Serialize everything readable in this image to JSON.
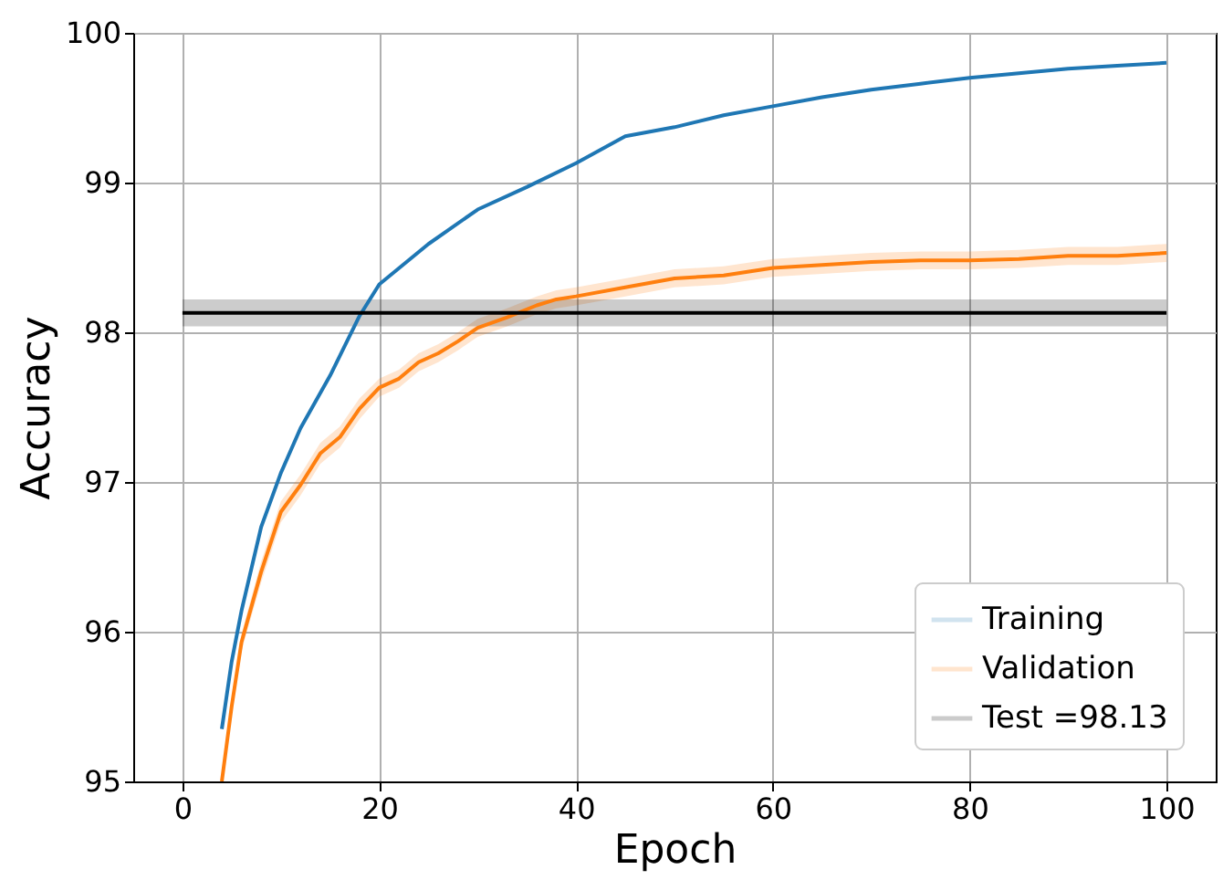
{
  "chart_data": {
    "type": "line",
    "xlabel": "Epoch",
    "ylabel": "Accuracy",
    "xlim": [
      -5,
      105
    ],
    "ylim": [
      95,
      100
    ],
    "xticks": [
      0,
      20,
      40,
      60,
      80,
      100
    ],
    "yticks": [
      95,
      96,
      97,
      98,
      99,
      100
    ],
    "grid": true,
    "legend": "bottom right",
    "series": [
      {
        "name": "Training",
        "color": "#1f77b4",
        "x": [
          4,
          5,
          6,
          8,
          10,
          12,
          15,
          18,
          20,
          25,
          30,
          35,
          40,
          45,
          50,
          55,
          60,
          65,
          70,
          75,
          80,
          85,
          90,
          95,
          100
        ],
        "values": [
          95.35,
          95.8,
          96.14,
          96.7,
          97.06,
          97.36,
          97.71,
          98.11,
          98.32,
          98.59,
          98.82,
          98.97,
          99.13,
          99.31,
          99.37,
          99.45,
          99.51,
          99.57,
          99.62,
          99.66,
          99.7,
          99.73,
          99.76,
          99.78,
          99.8
        ]
      },
      {
        "name": "Validation",
        "color": "#ff7f0e",
        "x": [
          4,
          5,
          6,
          8,
          10,
          12,
          14,
          16,
          18,
          20,
          22,
          24,
          26,
          28,
          30,
          33,
          36,
          38,
          40,
          45,
          50,
          55,
          60,
          65,
          70,
          75,
          80,
          85,
          90,
          95,
          100
        ],
        "values": [
          95.0,
          95.5,
          95.93,
          96.4,
          96.8,
          96.98,
          97.19,
          97.3,
          97.49,
          97.63,
          97.69,
          97.8,
          97.86,
          97.94,
          98.03,
          98.1,
          98.18,
          98.22,
          98.24,
          98.3,
          98.36,
          98.38,
          98.43,
          98.45,
          98.47,
          98.48,
          98.48,
          98.49,
          98.51,
          98.51,
          98.53
        ],
        "lower": [
          95.0,
          95.45,
          95.87,
          96.33,
          96.73,
          96.91,
          97.12,
          97.23,
          97.42,
          97.57,
          97.63,
          97.74,
          97.8,
          97.88,
          97.97,
          98.04,
          98.12,
          98.16,
          98.18,
          98.24,
          98.3,
          98.32,
          98.37,
          98.39,
          98.41,
          98.42,
          98.42,
          98.43,
          98.45,
          98.45,
          98.47
        ],
        "upper": [
          95.05,
          95.55,
          95.99,
          96.47,
          96.87,
          97.05,
          97.26,
          97.37,
          97.56,
          97.69,
          97.75,
          97.86,
          97.92,
          98.0,
          98.09,
          98.16,
          98.24,
          98.28,
          98.3,
          98.36,
          98.42,
          98.44,
          98.49,
          98.51,
          98.53,
          98.54,
          98.54,
          98.55,
          98.57,
          98.57,
          98.59
        ]
      },
      {
        "name": "Test =98.13",
        "color": "#000000",
        "x": [
          0,
          100
        ],
        "values": [
          98.13,
          98.13
        ],
        "lower": [
          98.04,
          98.04
        ],
        "upper": [
          98.22,
          98.22
        ]
      }
    ]
  }
}
